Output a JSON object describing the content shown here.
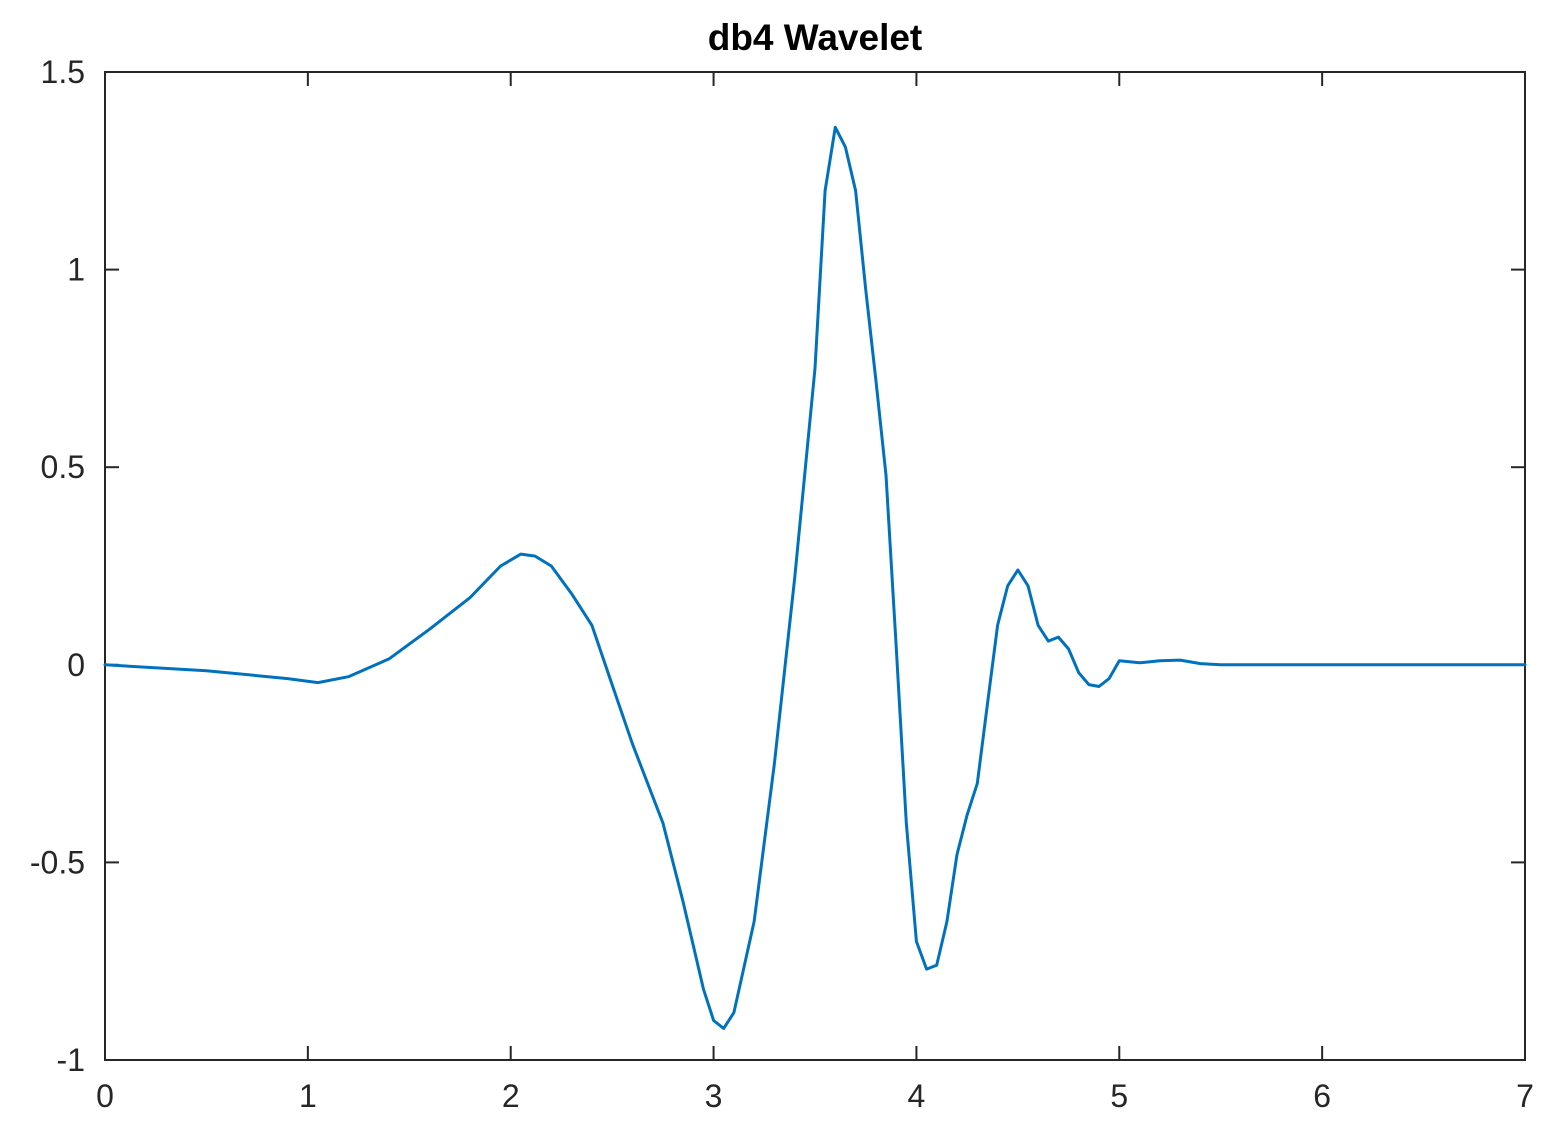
{
  "chart_data": {
    "type": "line",
    "title": "db4 Wavelet",
    "xlabel": "",
    "ylabel": "",
    "xlim": [
      0,
      7
    ],
    "ylim": [
      -1,
      1.5
    ],
    "x_ticks": [
      0,
      1,
      2,
      3,
      4,
      5,
      6,
      7
    ],
    "y_ticks": [
      -1,
      -0.5,
      0,
      0.5,
      1,
      1.5
    ],
    "x_tick_labels": [
      "0",
      "1",
      "2",
      "3",
      "4",
      "5",
      "6",
      "7"
    ],
    "y_tick_labels": [
      "-1",
      "-0.5",
      "0",
      "0.5",
      "1",
      "1.5"
    ],
    "grid": false,
    "colors": {
      "line": "#0072BD",
      "axes": "#262626"
    },
    "series": [
      {
        "x": [
          0,
          0.5,
          0.9,
          1.05,
          1.2,
          1.4,
          1.6,
          1.8,
          1.95,
          2.05,
          2.12,
          2.2,
          2.3,
          2.4,
          2.5,
          2.6,
          2.75,
          2.85,
          2.95,
          3.0,
          3.05,
          3.1,
          3.2,
          3.3,
          3.4,
          3.5,
          3.55,
          3.6,
          3.65,
          3.7,
          3.75,
          3.8,
          3.85,
          3.9,
          3.95,
          4.0,
          4.05,
          4.1,
          4.15,
          4.2,
          4.25,
          4.3,
          4.35,
          4.4,
          4.45,
          4.5,
          4.55,
          4.6,
          4.65,
          4.7,
          4.75,
          4.8,
          4.85,
          4.9,
          4.95,
          5.0,
          5.1,
          5.2,
          5.3,
          5.4,
          5.5,
          5.65,
          5.8,
          6.0,
          7.0
        ],
        "y": [
          0,
          -0.015,
          -0.035,
          -0.045,
          -0.03,
          0.015,
          0.09,
          0.17,
          0.25,
          0.28,
          0.275,
          0.25,
          0.18,
          0.1,
          -0.05,
          -0.2,
          -0.4,
          -0.6,
          -0.82,
          -0.9,
          -0.92,
          -0.88,
          -0.65,
          -0.25,
          0.22,
          0.75,
          1.2,
          1.36,
          1.31,
          1.2,
          0.95,
          0.72,
          0.48,
          0.05,
          -0.4,
          -0.7,
          -0.77,
          -0.76,
          -0.65,
          -0.48,
          -0.38,
          -0.3,
          -0.1,
          0.1,
          0.2,
          0.24,
          0.2,
          0.1,
          0.06,
          0.07,
          0.04,
          -0.02,
          -0.05,
          -0.055,
          -0.035,
          0.01,
          0.005,
          0.01,
          0.012,
          0.003,
          0,
          0,
          0,
          0,
          0
        ]
      }
    ]
  }
}
